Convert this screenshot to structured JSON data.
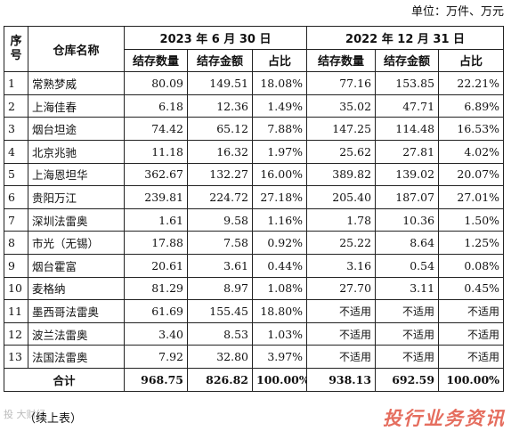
{
  "unit_label": "单位：万件、万元",
  "headers": {
    "index": "序号",
    "warehouse": "仓库名称",
    "period1": "2023 年 6 月 30 日",
    "period2": "2022 年 12 月 31 日",
    "qty": "结存数量",
    "amount": "结存金额",
    "ratio": "占比"
  },
  "rows": [
    {
      "no": "1",
      "name": "常熟梦威",
      "q1": "80.09",
      "a1": "149.51",
      "r1": "18.08%",
      "q2": "77.16",
      "a2": "153.85",
      "r2": "22.21%"
    },
    {
      "no": "2",
      "name": "上海佳春",
      "q1": "6.18",
      "a1": "12.36",
      "r1": "1.49%",
      "q2": "35.02",
      "a2": "47.71",
      "r2": "6.89%"
    },
    {
      "no": "3",
      "name": "烟台坦途",
      "q1": "74.42",
      "a1": "65.12",
      "r1": "7.88%",
      "q2": "147.25",
      "a2": "114.48",
      "r2": "16.53%"
    },
    {
      "no": "4",
      "name": "北京兆驰",
      "q1": "11.18",
      "a1": "16.32",
      "r1": "1.97%",
      "q2": "25.62",
      "a2": "27.81",
      "r2": "4.02%"
    },
    {
      "no": "5",
      "name": "上海恩坦华",
      "q1": "362.67",
      "a1": "132.27",
      "r1": "16.00%",
      "q2": "389.82",
      "a2": "139.02",
      "r2": "20.07%"
    },
    {
      "no": "6",
      "name": "贵阳万江",
      "q1": "239.81",
      "a1": "224.72",
      "r1": "27.18%",
      "q2": "205.40",
      "a2": "187.07",
      "r2": "27.01%"
    },
    {
      "no": "7",
      "name": "深圳法雷奥",
      "q1": "1.61",
      "a1": "9.58",
      "r1": "1.16%",
      "q2": "1.78",
      "a2": "10.36",
      "r2": "1.50%"
    },
    {
      "no": "8",
      "name": "市光（无锡）",
      "q1": "17.88",
      "a1": "7.58",
      "r1": "0.92%",
      "q2": "25.22",
      "a2": "8.64",
      "r2": "1.25%"
    },
    {
      "no": "9",
      "name": "烟台霍富",
      "q1": "20.61",
      "a1": "3.61",
      "r1": "0.44%",
      "q2": "3.16",
      "a2": "0.54",
      "r2": "0.08%"
    },
    {
      "no": "10",
      "name": "麦格纳",
      "q1": "81.29",
      "a1": "8.97",
      "r1": "1.08%",
      "q2": "27.70",
      "a2": "3.11",
      "r2": "0.45%"
    },
    {
      "no": "11",
      "name": "墨西哥法雷奥",
      "q1": "61.69",
      "a1": "155.45",
      "r1": "18.80%",
      "q2": "不适用",
      "a2": "不适用",
      "r2": "不适用"
    },
    {
      "no": "12",
      "name": "波兰法雷奥",
      "q1": "3.40",
      "a1": "8.53",
      "r1": "1.03%",
      "q2": "不适用",
      "a2": "不适用",
      "r2": "不适用"
    },
    {
      "no": "13",
      "name": "法国法雷奥",
      "q1": "7.92",
      "a1": "32.80",
      "r1": "3.97%",
      "q2": "不适用",
      "a2": "不适用",
      "r2": "不适用"
    }
  ],
  "total": {
    "label": "合计",
    "q1": "968.75",
    "a1": "826.82",
    "r1": "100.00%",
    "q2": "938.13",
    "a2": "692.59",
    "r2": "100.00%"
  },
  "continued": "（续上表）",
  "watermark_left": "投 大财经",
  "watermark_right": "投行业务资讯"
}
